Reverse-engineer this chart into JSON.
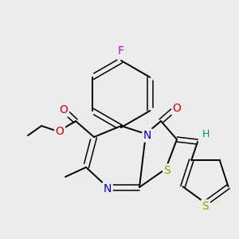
{
  "bg_color": "#ececec",
  "bond_color": "#000000",
  "atom_colors": {
    "N": "#0000cc",
    "O": "#cc0000",
    "S": "#999900",
    "F": "#cc00cc",
    "H": "#008888",
    "C": "#000000"
  },
  "figsize": [
    3.0,
    3.0
  ],
  "dpi": 100
}
